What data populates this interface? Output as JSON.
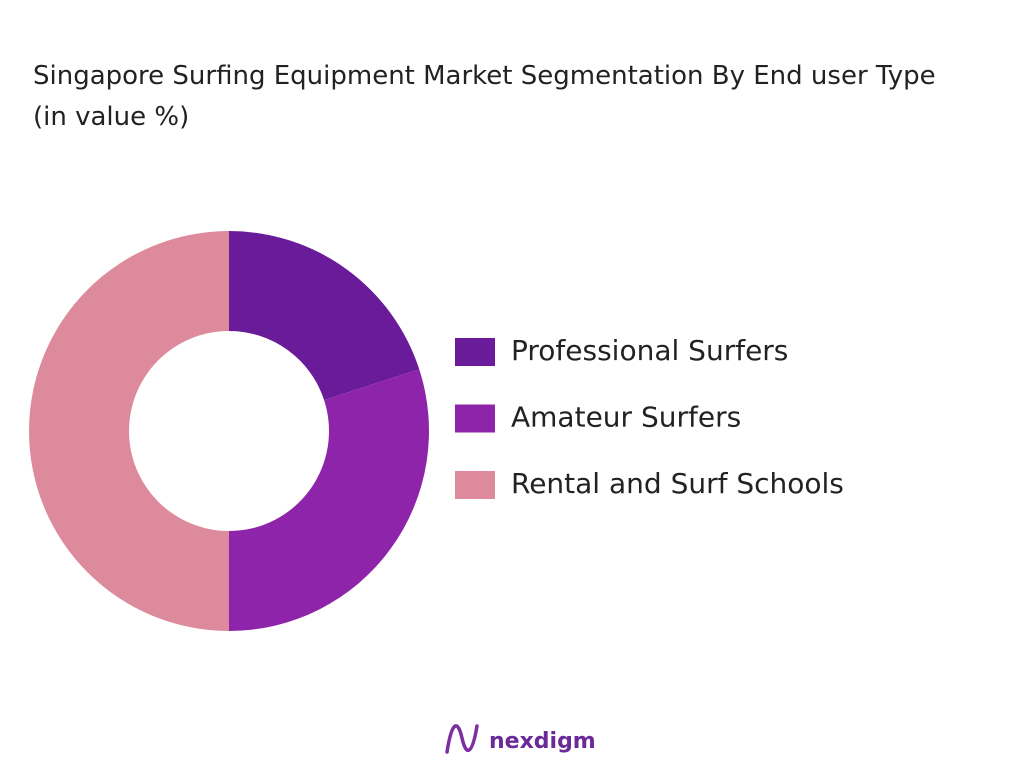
{
  "chart_data": {
    "type": "donut",
    "title": "Singapore Surfing Equipment Market Segmentation By End user Type (in value %)",
    "categories": [
      "Professional Surfers",
      "Amateur Surfers",
      "Rental and Surf Schools"
    ],
    "values": [
      20,
      30,
      50
    ],
    "colors": [
      "#6a1b9a",
      "#8e24aa",
      "#dd8a9c"
    ],
    "legend": "right"
  },
  "logo": {
    "text": "nexdigm"
  }
}
